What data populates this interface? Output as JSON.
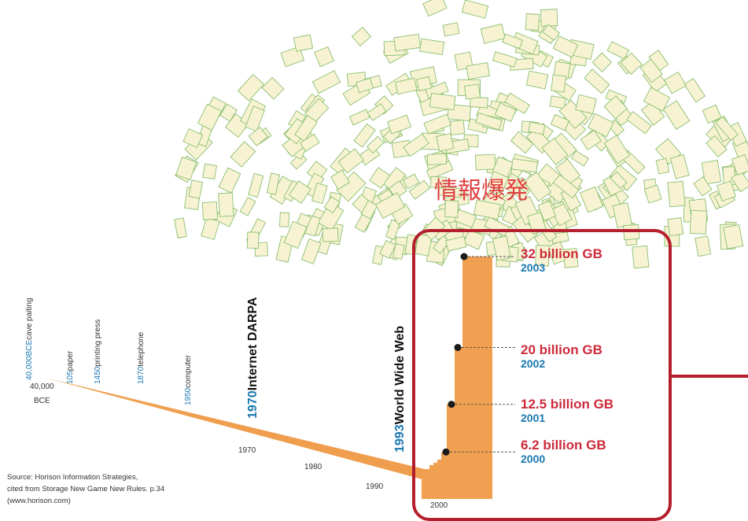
{
  "title": "情報爆発",
  "milestones": [
    {
      "year": "40,000BCE",
      "event": "cave paiting",
      "size": "small"
    },
    {
      "year": "105",
      "event": "paper",
      "size": "small"
    },
    {
      "year": "1450",
      "event": "printing press",
      "size": "small"
    },
    {
      "year": "1870",
      "event": "telephone",
      "size": "small"
    },
    {
      "year": "1950",
      "event": "computer",
      "size": "small"
    },
    {
      "year": "1970",
      "event": "Internet DARPA",
      "size": "large"
    },
    {
      "year": "1993",
      "event": "World Wide Web",
      "size": "large"
    }
  ],
  "axis_start_label": [
    "40,000",
    "BCE"
  ],
  "axis_tick_labels": [
    "1970",
    "1980",
    "1990",
    "2000"
  ],
  "source_lines": [
    "Source: Horison Information Strategies,",
    "cited from Storage New Game New Rules. p.34",
    "(www.horison.com)"
  ],
  "colors": {
    "title": "#e04040",
    "highlight_box": "#b51e2c",
    "bar_fill": "#f0a050",
    "value_text": "#cc2a3a",
    "year_text": "#1a78b0",
    "paper_fill": "#f7f3d2",
    "paper_stroke": "#8bbf72"
  },
  "chart_data": {
    "type": "bar",
    "series": [
      {
        "values": [
          6.2,
          12.5,
          20,
          32
        ]
      }
    ],
    "categories": [
      "2000",
      "2001",
      "2002",
      "2003"
    ],
    "value_labels": [
      "6.2 billion GB",
      "12.5 billion GB",
      "20 billion GB",
      "32 billion GB"
    ],
    "year_labels": [
      "2000",
      "2001",
      "2002",
      "2003"
    ],
    "unit": "billion GB",
    "ylim": [
      0,
      34
    ]
  }
}
